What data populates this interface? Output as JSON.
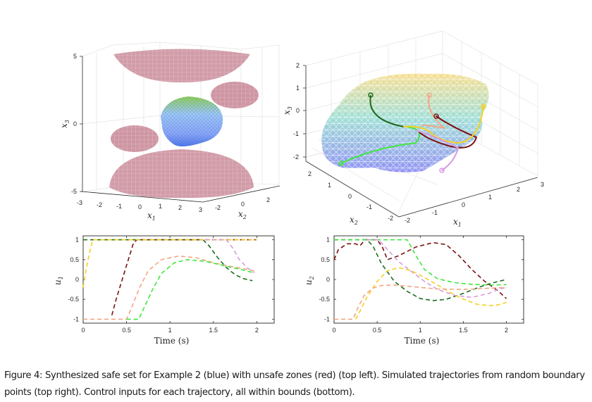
{
  "figure": {
    "caption": "Figure 4: Synthesized safe set for Example 2 (blue) with unsafe zones (red) (top left). Simulated trajectories from random boundary points (top right). Control inputs for each trajectory, all within bounds (bottom).",
    "colors": {
      "unsafe_zone": "#c98a99",
      "safe_set_top": "#8fd14f",
      "safe_set_bottom": "#6a7cf0",
      "axis": "#262626",
      "grid": "#e3e3e3"
    }
  },
  "chart_data": [
    {
      "id": "safe-set-3d",
      "type": "3d-surface",
      "title": "",
      "xlabel": "x1",
      "ylabel": "x2",
      "zlabel": "x3",
      "xlim": [
        -3,
        3
      ],
      "ylim": [
        -3,
        3
      ],
      "zlim": [
        -5,
        5
      ],
      "xticks": [
        "-3",
        "-2",
        "-1",
        "0",
        "1",
        "2",
        "3"
      ],
      "yticks": [
        "-2",
        "0",
        "2"
      ],
      "zticks": [
        "-5",
        "0",
        "5"
      ],
      "objects": [
        {
          "name": "unsafe-zone-top",
          "kind": "half-ellipsoid",
          "color": "red",
          "center": [
            0,
            0,
            5
          ]
        },
        {
          "name": "unsafe-zone-bottom",
          "kind": "half-ellipsoid",
          "color": "red",
          "center": [
            0,
            0,
            -5
          ]
        },
        {
          "name": "unsafe-zone-right",
          "kind": "ellipsoid",
          "color": "red",
          "approx_center": [
            2,
            2,
            2.5
          ]
        },
        {
          "name": "unsafe-zone-left",
          "kind": "ellipsoid",
          "color": "red",
          "approx_center": [
            -2,
            -2,
            -2
          ]
        },
        {
          "name": "safe-set",
          "kind": "surface",
          "color": "blue-green gradient",
          "approx_z_range": [
            -1.5,
            1.5
          ]
        }
      ]
    },
    {
      "id": "trajectories-3d",
      "type": "3d-line",
      "title": "",
      "xlabel": "x1",
      "ylabel": "x2",
      "zlabel": "x3",
      "xlim": [
        -2,
        3
      ],
      "ylim": [
        -2,
        2.5
      ],
      "zlim": [
        -2,
        2
      ],
      "xticks": [
        "-2",
        "-1",
        "0",
        "1",
        "2",
        "3"
      ],
      "yticks": [
        "-2",
        "-1",
        "0",
        "1",
        "2"
      ],
      "zticks": [
        "-2",
        "-1",
        "0",
        "1",
        "2"
      ],
      "series": [
        {
          "name": "trajectory-dark-green",
          "color": "#1e6b1e"
        },
        {
          "name": "trajectory-green",
          "color": "#3ee83e"
        },
        {
          "name": "trajectory-salmon",
          "color": "#f4a582"
        },
        {
          "name": "trajectory-dark-red",
          "color": "#7a1010"
        },
        {
          "name": "trajectory-yellow",
          "color": "#f5d020"
        },
        {
          "name": "trajectory-violet",
          "color": "#d79ae0"
        }
      ]
    },
    {
      "id": "u1-plot",
      "type": "line",
      "title": "",
      "xlabel": "Time (s)",
      "ylabel": "u1",
      "xlim": [
        0,
        2.2
      ],
      "ylim": [
        -1.1,
        1.1
      ],
      "xticks": [
        "0",
        "0.5",
        "1",
        "1.5",
        "2"
      ],
      "yticks": [
        "-1",
        "-0.5",
        "0",
        "0.5",
        "1"
      ],
      "grid": false,
      "series": [
        {
          "name": "dark-green",
          "color": "#1e6b1e",
          "x": [
            0,
            0.5,
            1.0,
            1.38,
            1.45,
            1.55,
            1.65,
            1.75,
            1.85,
            1.95
          ],
          "y": [
            1,
            1,
            1,
            1,
            0.85,
            0.55,
            0.3,
            0.12,
            0.02,
            -0.03
          ]
        },
        {
          "name": "dark-red",
          "color": "#7a1010",
          "x": [
            0.33,
            0.38,
            0.45,
            0.52,
            0.58,
            0.62,
            1.0,
            1.5,
            2.0
          ],
          "y": [
            -0.9,
            -0.5,
            0,
            0.5,
            0.92,
            1,
            1,
            1,
            1
          ]
        },
        {
          "name": "yellow",
          "color": "#f5d020",
          "x": [
            0,
            0.03,
            0.07,
            0.11,
            0.5,
            1.0,
            1.5,
            2.0
          ],
          "y": [
            -0.2,
            0.2,
            0.65,
            1,
            1,
            1,
            1,
            1
          ]
        },
        {
          "name": "salmon",
          "color": "#f4a582",
          "x": [
            0,
            0.5,
            0.55,
            0.65,
            0.75,
            0.9,
            1.1,
            1.3,
            1.5,
            1.7,
            1.9,
            2.0
          ],
          "y": [
            -1,
            -1,
            -0.75,
            -0.2,
            0.22,
            0.5,
            0.59,
            0.55,
            0.42,
            0.33,
            0.25,
            0.2
          ]
        },
        {
          "name": "green",
          "color": "#3ee83e",
          "x": [
            0.5,
            0.64,
            0.7,
            0.8,
            0.9,
            1.05,
            1.2,
            1.4,
            1.6,
            1.8,
            1.95
          ],
          "y": [
            -1,
            -1,
            -0.72,
            -0.25,
            0.15,
            0.42,
            0.5,
            0.46,
            0.36,
            0.26,
            0.18
          ]
        },
        {
          "name": "violet",
          "color": "#d79ae0",
          "x": [
            1.4,
            1.65,
            1.72,
            1.8,
            1.9,
            1.97
          ],
          "y": [
            1,
            1,
            0.8,
            0.5,
            0.28,
            0.17
          ]
        }
      ]
    },
    {
      "id": "u2-plot",
      "type": "line",
      "title": "",
      "xlabel": "Time (s)",
      "ylabel": "u2",
      "xlim": [
        0,
        2.2
      ],
      "ylim": [
        -1.1,
        1.1
      ],
      "xticks": [
        "0",
        "0.5",
        "1",
        "1.5",
        "2"
      ],
      "yticks": [
        "-1",
        "-0.5",
        "0",
        "0.5",
        "1"
      ],
      "grid": false,
      "series": [
        {
          "name": "dark-green",
          "color": "#1e6b1e",
          "x": [
            0,
            0.38,
            0.45,
            0.55,
            0.7,
            0.85,
            1.0,
            1.15,
            1.3,
            1.5,
            1.7,
            1.85,
            2.0
          ],
          "y": [
            1,
            1,
            0.85,
            0.4,
            -0.05,
            -0.3,
            -0.48,
            -0.53,
            -0.5,
            -0.35,
            -0.18,
            -0.08,
            0
          ]
        },
        {
          "name": "dark-red",
          "color": "#7a1010",
          "x": [
            0,
            0.05,
            0.15,
            0.25,
            0.3,
            0.36,
            0.5,
            0.56,
            0.62,
            0.75,
            0.95,
            1.15,
            1.3,
            1.45,
            1.6,
            1.75,
            1.9,
            2.0
          ],
          "y": [
            0.5,
            0.75,
            0.9,
            0.9,
            0.85,
            1,
            1,
            0.82,
            0.5,
            0.6,
            0.82,
            0.93,
            0.88,
            0.6,
            0.25,
            -0.05,
            -0.28,
            -0.48
          ]
        },
        {
          "name": "green",
          "color": "#3ee83e",
          "x": [
            0,
            0.85,
            0.95,
            1.05,
            1.2,
            1.4,
            1.6,
            1.8,
            2.0
          ],
          "y": [
            1,
            1,
            0.6,
            0.25,
            0.02,
            -0.08,
            -0.12,
            -0.14,
            -0.13
          ]
        },
        {
          "name": "violet",
          "color": "#d79ae0",
          "x": [
            0.38,
            0.52,
            0.6,
            0.75,
            0.9,
            1.05,
            1.2,
            1.4,
            1.6,
            1.8,
            1.9,
            2.0
          ],
          "y": [
            1,
            1,
            0.8,
            0.45,
            0.2,
            -0.05,
            -0.25,
            -0.4,
            -0.45,
            -0.35,
            -0.25,
            -0.2
          ]
        },
        {
          "name": "yellow",
          "color": "#f5d020",
          "x": [
            0.25,
            0.3,
            0.38,
            0.5,
            0.62,
            0.75,
            0.9,
            1.05,
            1.25,
            1.45,
            1.65,
            1.8,
            1.9,
            2.0
          ],
          "y": [
            -1,
            -0.8,
            -0.45,
            -0.05,
            0.22,
            0.3,
            0.22,
            0.05,
            -0.2,
            -0.45,
            -0.62,
            -0.66,
            -0.64,
            -0.58
          ]
        },
        {
          "name": "salmon",
          "color": "#f4a582",
          "x": [
            0,
            0.22,
            0.28,
            0.35,
            0.45,
            0.55,
            0.7,
            0.9,
            1.2,
            1.5,
            1.8,
            2.0
          ],
          "y": [
            -1,
            -1,
            -0.7,
            -0.4,
            -0.22,
            -0.15,
            -0.14,
            -0.18,
            -0.24,
            -0.25,
            -0.22,
            -0.2
          ]
        }
      ]
    }
  ]
}
